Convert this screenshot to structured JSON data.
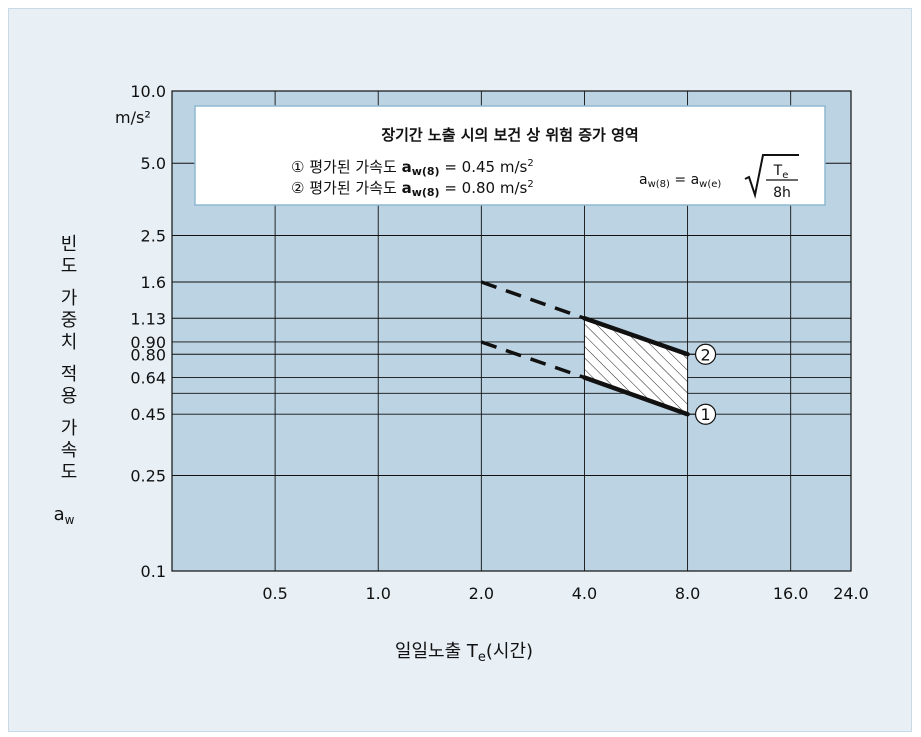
{
  "chart_data": {
    "type": "line",
    "title": "",
    "xlabel": "일일노출 Te(시간)",
    "ylabel": "빈도 가중치 적용 가속도 aw",
    "y_unit": "m/s²",
    "x_scale": "log",
    "y_scale": "log",
    "grid": true,
    "xlim": [
      0.25,
      24.0
    ],
    "ylim": [
      0.1,
      10.0
    ],
    "x_ticks": [
      0.5,
      1.0,
      2.0,
      4.0,
      8.0,
      16.0,
      24.0
    ],
    "x_tick_labels": [
      "0.5",
      "1.0",
      "2.0",
      "4.0",
      "8.0",
      "16.0",
      "24.0"
    ],
    "y_ticks": [
      0.1,
      0.25,
      0.45,
      0.64,
      0.8,
      0.9,
      1.13,
      1.6,
      2.5,
      5.0,
      10.0
    ],
    "y_tick_labels": [
      "0.1",
      "0.25",
      "0.45",
      "0.64",
      "0.80",
      "0.90",
      "1.13",
      "1.6",
      "2.5",
      "5.0",
      "10.0"
    ],
    "extra_gridlines_y": [
      0.55
    ],
    "series": [
      {
        "name": "①",
        "points": [
          {
            "x": 2.0,
            "y": 0.9
          },
          {
            "x": 4.0,
            "y": 0.64
          },
          {
            "x": 8.0,
            "y": 0.45
          }
        ],
        "dashed_segment": [
          2.0,
          4.0
        ],
        "solid_segment": [
          4.0,
          8.0
        ]
      },
      {
        "name": "②",
        "points": [
          {
            "x": 2.0,
            "y": 1.6
          },
          {
            "x": 4.0,
            "y": 1.13
          },
          {
            "x": 8.0,
            "y": 0.8
          }
        ],
        "dashed_segment": [
          2.0,
          4.0
        ],
        "solid_segment": [
          4.0,
          8.0
        ]
      }
    ],
    "hatched_region": {
      "x_range": [
        4.0,
        8.0
      ],
      "lower_series": "①",
      "upper_series": "②"
    },
    "legend": {
      "placement": "top",
      "title": "장기간 노출 시의 보건 상 위험 증가 영역",
      "entries": [
        {
          "marker": "①",
          "prefix": "평가된 가속도",
          "symbol_main": "a",
          "symbol_sub": "w(8)",
          "value": "= 0.45 m/s",
          "sup": "2"
        },
        {
          "marker": "②",
          "prefix": "평가된 가속도",
          "symbol_main": "a",
          "symbol_sub": "w(8)",
          "value": "= 0.80 m/s",
          "sup": "2"
        }
      ],
      "formula": {
        "lhs_main": "a",
        "lhs_sub": "w(8)",
        "eq": "= a",
        "rhs_sub": "w(e)",
        "num_main": "T",
        "num_sub": "e",
        "den": "8h"
      }
    }
  }
}
